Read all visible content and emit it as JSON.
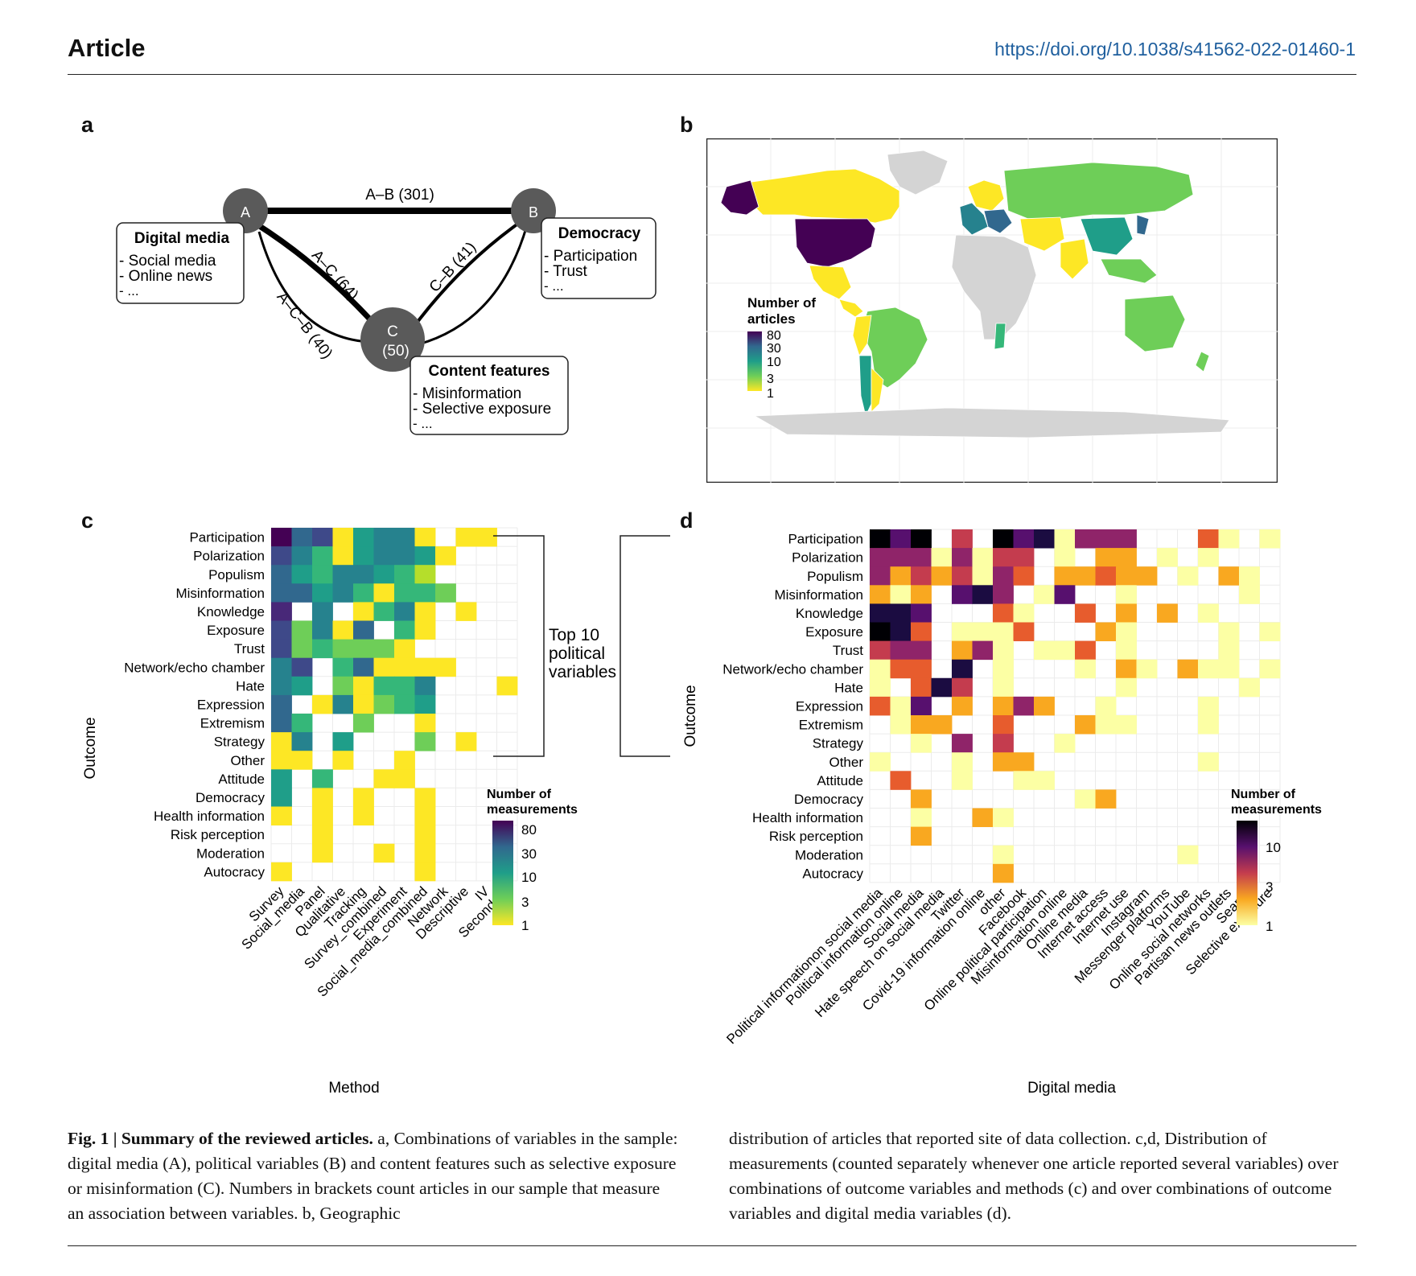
{
  "header": {
    "title": "Article",
    "doi": "https://doi.org/10.1038/s41562-022-01460-1"
  },
  "panel_labels": {
    "a": "a",
    "b": "b",
    "c": "c",
    "d": "d"
  },
  "diagram": {
    "nodes": [
      {
        "id": "A",
        "label": "A",
        "sub": ""
      },
      {
        "id": "B",
        "label": "B",
        "sub": ""
      },
      {
        "id": "C",
        "label": "C",
        "sub": "(50)"
      }
    ],
    "edges": [
      {
        "label": "A–B (301)"
      },
      {
        "label": "A–C (64)"
      },
      {
        "label": "C–B (41)"
      },
      {
        "label": "A–C–B (40)"
      }
    ],
    "boxes": [
      {
        "title": "Digital media",
        "items": [
          "- Social media",
          "- Online news",
          "- ..."
        ]
      },
      {
        "title": "Democracy",
        "items": [
          "- Participation",
          "- Trust",
          "- ..."
        ]
      },
      {
        "title": "Content features",
        "items": [
          "- Misinformation",
          "- Selective exposure",
          "- ..."
        ]
      }
    ]
  },
  "map": {
    "legend_title": [
      "Number of",
      "articles"
    ],
    "legend_ticks": [
      "80",
      "30",
      "10",
      "3",
      "1"
    ]
  },
  "bracket_text": [
    "Top 10",
    "political",
    "variables"
  ],
  "colors": {
    "viridis": [
      "#fde725",
      "#b5de2b",
      "#6ece58",
      "#35b779",
      "#1f9e89",
      "#26828e",
      "#31688e",
      "#3e4989",
      "#482878",
      "#440154"
    ],
    "inferno": [
      "#fcffa4",
      "#fbd84a",
      "#f9a820",
      "#e75c2d",
      "#c43c4e",
      "#8f2469",
      "#57106e",
      "#1b0c41",
      "#000004"
    ],
    "map_gray": "#d4d4d4"
  },
  "chart_data": [
    {
      "type": "heatmap",
      "panel": "c",
      "xlabel": "Method",
      "ylabel": "Outcome",
      "legend_title": [
        "Number of",
        "measurements"
      ],
      "legend_ticks": [
        "80",
        "30",
        "10",
        "3",
        "1"
      ],
      "x": [
        "Survey",
        "Social_media",
        "Panel",
        "Qualitative",
        "Tracking",
        "Survey_combined",
        "Experiment",
        "Social_media_combined",
        "Network",
        "Descriptive",
        "IV",
        "Secondary"
      ],
      "y": [
        "Participation",
        "Polarization",
        "Populism",
        "Misinformation",
        "Knowledge",
        "Exposure",
        "Trust",
        "Network/echo chamber",
        "Hate",
        "Expression",
        "Extremism",
        "Strategy",
        "Other",
        "Attitude",
        "Democracy",
        "Health information",
        "Risk perception",
        "Moderation",
        "Autocracy"
      ],
      "values": [
        [
          95,
          20,
          30,
          1,
          8,
          16,
          16,
          1,
          0,
          1,
          1,
          0
        ],
        [
          30,
          15,
          4,
          1,
          8,
          14,
          14,
          6,
          1,
          0,
          0,
          0
        ],
        [
          25,
          8,
          5,
          12,
          14,
          6,
          4,
          2,
          0,
          0,
          0,
          0
        ],
        [
          20,
          22,
          6,
          14,
          4,
          1,
          4,
          5,
          3,
          0,
          0,
          0
        ],
        [
          45,
          0,
          12,
          0,
          1,
          5,
          15,
          1,
          0,
          1,
          0,
          0
        ],
        [
          40,
          3,
          12,
          1,
          20,
          0,
          5,
          1,
          0,
          0,
          0,
          0
        ],
        [
          42,
          3,
          5,
          3,
          3,
          3,
          1,
          0,
          0,
          0,
          0,
          0
        ],
        [
          10,
          30,
          0,
          4,
          20,
          1,
          1,
          1,
          1,
          0,
          0,
          0
        ],
        [
          16,
          6,
          0,
          3,
          1,
          5,
          5,
          14,
          0,
          0,
          0,
          1
        ],
        [
          22,
          0,
          1,
          10,
          1,
          3,
          4,
          8,
          0,
          0,
          0,
          0
        ],
        [
          20,
          4,
          0,
          0,
          3,
          0,
          0,
          1,
          0,
          0,
          0,
          0
        ],
        [
          1,
          15,
          0,
          8,
          0,
          0,
          0,
          3,
          0,
          1,
          0,
          0
        ],
        [
          1,
          1,
          0,
          1,
          0,
          0,
          1,
          0,
          0,
          0,
          0,
          0
        ],
        [
          6,
          0,
          4,
          0,
          0,
          1,
          1,
          0,
          0,
          0,
          0,
          0
        ],
        [
          6,
          0,
          1,
          0,
          1,
          0,
          0,
          1,
          0,
          0,
          0,
          0
        ],
        [
          1,
          0,
          1,
          0,
          1,
          0,
          0,
          1,
          0,
          0,
          0,
          0
        ],
        [
          0,
          0,
          1,
          0,
          0,
          0,
          0,
          1,
          0,
          0,
          0,
          0
        ],
        [
          0,
          0,
          1,
          0,
          0,
          1,
          0,
          1,
          0,
          0,
          0,
          0
        ],
        [
          1,
          0,
          0,
          0,
          0,
          0,
          0,
          1,
          0,
          0,
          0,
          0
        ]
      ]
    },
    {
      "type": "heatmap",
      "panel": "d",
      "xlabel": "Digital media",
      "ylabel": "Outcome",
      "legend_title": [
        "Number of",
        "measurements"
      ],
      "legend_ticks": [
        "10",
        "3",
        "1"
      ],
      "x": [
        "Political informationon social media",
        "Political information online",
        "Social media",
        "Hate speech on social media",
        "Twitter",
        "Covid-19 information online",
        "other",
        "Facebook",
        "Online political participation",
        "Misinformation online",
        "Online media",
        "Internet access",
        "Internet use",
        "Instagram",
        "Messenger platforms",
        "YouTube",
        "Online social networks",
        "Partisan news outlets",
        "Search",
        "Selective exposure"
      ],
      "y": [
        "Participation",
        "Polarization",
        "Populism",
        "Misinformation",
        "Knowledge",
        "Exposure",
        "Trust",
        "Network/echo chamber",
        "Hate",
        "Expression",
        "Extremism",
        "Strategy",
        "Other",
        "Attitude",
        "Democracy",
        "Health information",
        "Risk perception",
        "Moderation",
        "Autocracy"
      ],
      "values": [
        [
          15,
          9,
          15,
          0,
          4,
          0,
          15,
          8,
          12,
          1,
          5,
          5,
          5,
          0,
          0,
          0,
          3,
          1,
          0,
          1
        ],
        [
          6,
          6,
          5,
          1,
          6,
          1,
          4,
          4,
          0,
          1,
          0,
          2,
          2,
          0,
          1,
          0,
          1,
          0,
          0,
          0
        ],
        [
          6,
          2,
          4,
          2,
          4,
          1,
          5,
          3,
          0,
          2,
          2,
          3,
          2,
          2,
          0,
          1,
          0,
          2,
          1,
          0
        ],
        [
          2,
          1,
          2,
          0,
          8,
          10,
          5,
          0,
          1,
          8,
          0,
          0,
          1,
          0,
          0,
          0,
          0,
          0,
          1,
          0
        ],
        [
          10,
          10,
          7,
          0,
          0,
          0,
          3,
          1,
          0,
          0,
          3,
          0,
          2,
          0,
          2,
          0,
          1,
          0,
          0,
          0
        ],
        [
          13,
          10,
          3,
          0,
          1,
          1,
          1,
          3,
          0,
          0,
          0,
          2,
          1,
          0,
          0,
          0,
          0,
          1,
          0,
          1
        ],
        [
          4,
          6,
          6,
          0,
          2,
          5,
          1,
          0,
          1,
          1,
          3,
          0,
          1,
          0,
          0,
          0,
          0,
          1,
          0,
          0
        ],
        [
          1,
          3,
          3,
          0,
          11,
          0,
          1,
          0,
          0,
          0,
          1,
          0,
          2,
          1,
          0,
          2,
          1,
          1,
          0,
          1
        ],
        [
          1,
          0,
          3,
          11,
          4,
          0,
          1,
          0,
          0,
          0,
          0,
          0,
          1,
          0,
          0,
          0,
          0,
          0,
          1,
          0
        ],
        [
          3,
          1,
          7,
          0,
          2,
          0,
          2,
          5,
          2,
          0,
          0,
          1,
          0,
          0,
          0,
          0,
          1,
          0,
          0,
          0
        ],
        [
          0,
          1,
          2,
          2,
          0,
          0,
          3,
          0,
          0,
          0,
          2,
          1,
          1,
          0,
          0,
          0,
          1,
          0,
          0,
          0
        ],
        [
          0,
          0,
          1,
          0,
          5,
          0,
          4,
          0,
          0,
          1,
          0,
          0,
          0,
          0,
          0,
          0,
          0,
          0,
          0,
          0
        ],
        [
          1,
          0,
          0,
          0,
          1,
          0,
          2,
          2,
          0,
          0,
          0,
          0,
          0,
          0,
          0,
          0,
          1,
          0,
          0,
          0
        ],
        [
          0,
          3,
          0,
          0,
          1,
          0,
          0,
          1,
          1,
          0,
          0,
          0,
          0,
          0,
          0,
          0,
          0,
          0,
          0,
          0
        ],
        [
          0,
          0,
          2,
          0,
          0,
          0,
          0,
          0,
          0,
          0,
          1,
          2,
          0,
          0,
          0,
          0,
          0,
          0,
          0,
          0
        ],
        [
          0,
          0,
          1,
          0,
          0,
          2,
          1,
          0,
          0,
          0,
          0,
          0,
          0,
          0,
          0,
          0,
          0,
          0,
          0,
          0
        ],
        [
          0,
          0,
          2,
          0,
          0,
          0,
          0,
          0,
          0,
          0,
          0,
          0,
          0,
          0,
          0,
          0,
          0,
          0,
          0,
          0
        ],
        [
          0,
          0,
          0,
          0,
          0,
          0,
          1,
          0,
          0,
          0,
          0,
          0,
          0,
          0,
          0,
          1,
          0,
          0,
          0,
          0
        ],
        [
          0,
          0,
          0,
          0,
          0,
          0,
          2,
          0,
          0,
          0,
          0,
          0,
          0,
          0,
          0,
          0,
          0,
          0,
          0,
          0
        ]
      ]
    }
  ],
  "caption": {
    "fig_label": "Fig. 1 |",
    "fig_title": "Summary of the reviewed articles.",
    "left_text": " a, Combinations of variables in the sample: digital media (A), political variables (B) and content features such as selective exposure or misinformation (C). Numbers in brackets count articles in our sample that measure an association between variables. b, Geographic",
    "right_text": "distribution of articles that reported site of data collection. c,d, Distribution of measurements (counted separately whenever one article reported several variables) over combinations of outcome variables and methods (c) and over combinations of outcome variables and digital media variables (d)."
  }
}
